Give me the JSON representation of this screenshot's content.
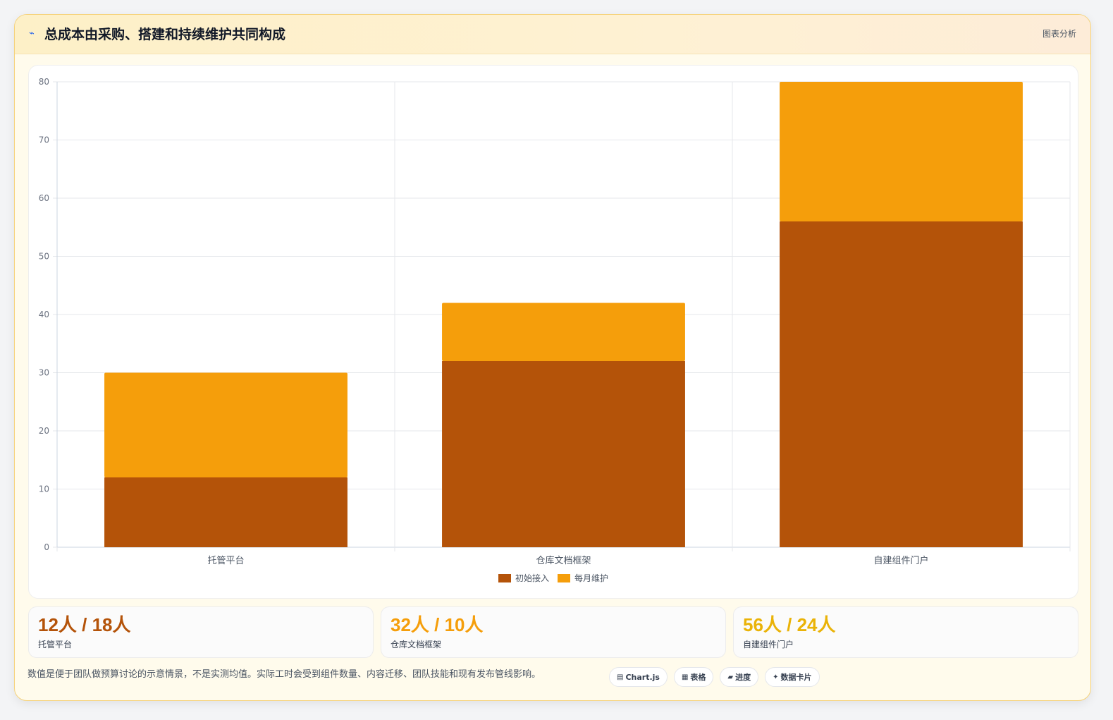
{
  "header": {
    "icon": "chart-icon",
    "title": "总成本由采购、搭建和持续维护共同构成",
    "right_label": "图表分析"
  },
  "chart_data": {
    "type": "bar",
    "stacked": true,
    "categories": [
      "托管平台",
      "仓库文档框架",
      "自建组件门户"
    ],
    "series": [
      {
        "name": "初始接入",
        "values": [
          12,
          32,
          56
        ],
        "color": "#b45309"
      },
      {
        "name": "每月维护",
        "values": [
          18,
          10,
          24
        ],
        "color": "#f59e0b"
      }
    ],
    "ylim": [
      0,
      80
    ],
    "yticks": [
      0,
      10,
      20,
      30,
      40,
      50,
      60,
      70,
      80
    ],
    "grid": true,
    "legend": "bottom"
  },
  "stats": [
    {
      "value": "12人 / 18人",
      "label": "托管平台",
      "color": "#b45309"
    },
    {
      "value": "32人 / 10人",
      "label": "仓库文档框架",
      "color": "#f59e0b"
    },
    {
      "value": "56人 / 24人",
      "label": "自建组件门户",
      "color": "#eab308"
    }
  ],
  "footnote": "数值是便于团队做预算讨论的示意情景，不是实测均值。实际工时会受到组件数量、内容迁移、团队技能和现有发布管线影响。",
  "chips": [
    {
      "icon": "chart-icon",
      "glyph": "▤",
      "label": "Chart.js"
    },
    {
      "icon": "table-icon",
      "glyph": "▦",
      "label": "表格"
    },
    {
      "icon": "progress-icon",
      "glyph": "▰",
      "label": "进度"
    },
    {
      "icon": "sparkle-icon",
      "glyph": "✦",
      "label": "数据卡片"
    }
  ]
}
